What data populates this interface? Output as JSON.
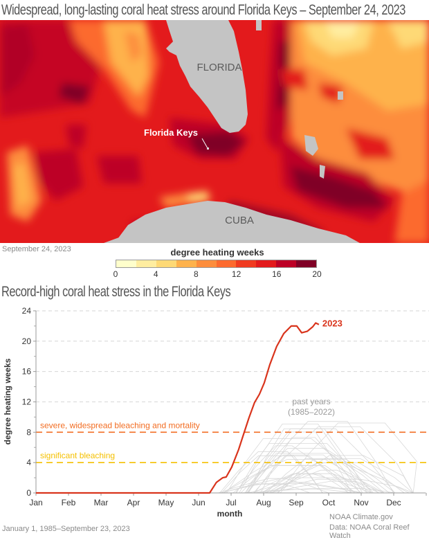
{
  "map": {
    "title": "Widespread, long-lasting coral heat stress around Florida Keys – September 24, 2023",
    "date_label": "September 24, 2023",
    "labels": {
      "florida": "FLORIDA",
      "florida_keys": "Florida Keys",
      "cuba": "CUBA"
    },
    "land_color": "#c4c4c4",
    "legend": {
      "title": "degree heating weeks",
      "ticks": [
        "0",
        "4",
        "8",
        "12",
        "16",
        "20"
      ],
      "colors": [
        "#ffffcc",
        "#ffeda0",
        "#fed976",
        "#feb24c",
        "#fd8d3c",
        "#fc6a2e",
        "#f03b20",
        "#e31a1c",
        "#bd0026",
        "#800026"
      ]
    }
  },
  "chart_data": {
    "type": "line",
    "title": "Record-high coral heat stress in the Florida Keys",
    "xlabel": "month",
    "ylabel": "degree heating weeks",
    "x_tick_labels": [
      "Jan",
      "Feb",
      "Mar",
      "Apr",
      "May",
      "Jun",
      "Jul",
      "Aug",
      "Sep",
      "Oct",
      "Nov",
      "Dec"
    ],
    "y_ticks": [
      0,
      4,
      8,
      12,
      16,
      20,
      24
    ],
    "ylim": [
      0,
      24
    ],
    "xlim_months": [
      0,
      12
    ],
    "grid": "horizontal dashed",
    "thresholds": [
      {
        "label": "severe, widespread bleaching and mortality",
        "value": 8,
        "color": "#f26c21"
      },
      {
        "label": "significant bleaching",
        "value": 4,
        "color": "#f5c000"
      }
    ],
    "series": [
      {
        "name": "2023",
        "color": "#d9341c",
        "x_month": [
          0,
          5.34,
          5.55,
          5.74,
          5.85,
          6.02,
          6.23,
          6.38,
          6.55,
          6.72,
          6.87,
          7.02,
          7.19,
          7.4,
          7.62,
          7.85,
          8.02,
          8.17,
          8.34,
          8.51,
          8.6,
          8.7
        ],
        "values": [
          0,
          0,
          1.4,
          2.0,
          2.1,
          3.4,
          5.7,
          7.7,
          9.9,
          11.9,
          13.0,
          14.5,
          16.9,
          19.3,
          21.0,
          22.0,
          22.0,
          21.1,
          21.3,
          21.9,
          22.4,
          22.2
        ]
      }
    ],
    "past_years": {
      "label": "past years",
      "range_label": "(1985–2022)",
      "color": "#d8d8d8",
      "note": "38 faint gray lines, each 0 until ~Jun–Aug, peaking between ~1 and ~9.5 DHW in Sep–Oct, returning to 0 by Nov–Dec",
      "envelope": {
        "x_month": [
          5.3,
          6.0,
          6.5,
          7.0,
          7.5,
          8.0,
          8.5,
          9.0,
          9.5,
          10.0,
          10.5,
          11.0,
          11.5
        ],
        "max_values": [
          0,
          1.5,
          3.5,
          5.5,
          7.5,
          8.8,
          9.5,
          8.5,
          7.0,
          4.0,
          1.8,
          0.5,
          0
        ]
      }
    },
    "annotation_2023": "2023",
    "source_note": "January 1, 1985–September 23, 2023"
  },
  "credits": {
    "line1": "NOAA Climate.gov",
    "line2": "Data: NOAA Coral Reef Watch"
  }
}
